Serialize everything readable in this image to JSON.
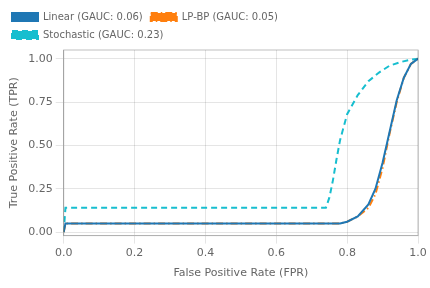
{
  "chart_data": {
    "type": "line",
    "xlabel": "False Positive Rate (FPR)",
    "ylabel": "True Positive Rate (TPR)",
    "xlim": [
      0.0,
      1.0
    ],
    "ylim": [
      -0.02,
      1.05
    ],
    "xticks": [
      {
        "value": 0.0,
        "label": "0.0"
      },
      0.2,
      0.4,
      0.6,
      0.8,
      {
        "value": 1.0,
        "label": "1.0"
      }
    ],
    "yticks": [
      {
        "value": 0.0,
        "label": "0.00"
      },
      0.25,
      {
        "value": 0.5,
        "label": "0.50"
      },
      0.75,
      {
        "value": 1.0,
        "label": "1.00"
      }
    ],
    "grid": true,
    "legend": "upper left",
    "series": [
      {
        "name": "Linear (GAUC: 0.06)",
        "color": "#1f77b4",
        "line_style": "solid",
        "x": [
          0.0,
          0.005,
          0.75,
          0.76,
          0.78,
          0.8,
          0.83,
          0.86,
          0.88,
          0.9,
          0.92,
          0.94,
          0.96,
          0.98,
          1.0
        ],
        "values": [
          0.0,
          0.05,
          0.05,
          0.05,
          0.05,
          0.06,
          0.09,
          0.16,
          0.25,
          0.4,
          0.58,
          0.76,
          0.89,
          0.97,
          1.0
        ]
      },
      {
        "name": "LP-BP (GAUC: 0.05)",
        "color": "#ff7f0e",
        "line_style": "dashdot",
        "x": [
          0.0,
          0.005,
          0.75,
          0.76,
          0.78,
          0.8,
          0.83,
          0.86,
          0.88,
          0.9,
          0.92,
          0.94,
          0.96,
          0.98,
          1.0
        ],
        "values": [
          0.0,
          0.05,
          0.05,
          0.05,
          0.05,
          0.06,
          0.09,
          0.14,
          0.22,
          0.37,
          0.57,
          0.75,
          0.89,
          0.97,
          1.0
        ]
      },
      {
        "name": "Stochastic (GAUC: 0.23)",
        "color": "#17becf",
        "line_style": "dashed",
        "x": [
          0.0,
          0.005,
          0.73,
          0.74,
          0.75,
          0.76,
          0.77,
          0.78,
          0.8,
          0.83,
          0.86,
          0.89,
          0.92,
          0.95,
          0.98,
          1.0
        ],
        "values": [
          0.0,
          0.14,
          0.14,
          0.14,
          0.2,
          0.3,
          0.42,
          0.53,
          0.68,
          0.79,
          0.87,
          0.92,
          0.96,
          0.98,
          0.995,
          1.0
        ]
      }
    ]
  }
}
